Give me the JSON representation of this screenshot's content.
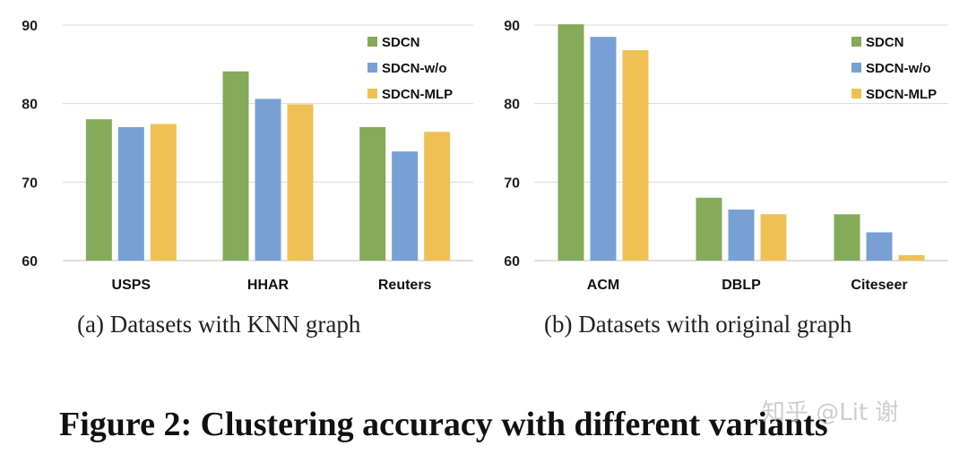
{
  "colors": {
    "SDCN": "#84aa5a",
    "SDCN-w/o": "#78a0d4",
    "SDCN-MLP": "#efc155",
    "grid": "#d9d9d9"
  },
  "chart_data": [
    {
      "type": "bar",
      "caption": "(a)  Datasets with KNN graph",
      "categories": [
        "USPS",
        "HHAR",
        "Reuters"
      ],
      "series": [
        {
          "name": "SDCN",
          "values": [
            78.0,
            84.1,
            77.0
          ]
        },
        {
          "name": "SDCN-w/o",
          "values": [
            77.0,
            80.6,
            73.9
          ]
        },
        {
          "name": "SDCN-MLP",
          "values": [
            77.4,
            79.9,
            76.4
          ]
        }
      ],
      "ylim": [
        60,
        90
      ],
      "yticks": [
        "60",
        "70",
        "80",
        "90"
      ],
      "grid": true,
      "legend_position": "top-right"
    },
    {
      "type": "bar",
      "caption": "(b)  Datasets with original graph",
      "categories": [
        "ACM",
        "DBLP",
        "Citeseer"
      ],
      "series": [
        {
          "name": "SDCN",
          "values": [
            90.1,
            68.0,
            65.9
          ]
        },
        {
          "name": "SDCN-w/o",
          "values": [
            88.5,
            66.5,
            63.6
          ]
        },
        {
          "name": "SDCN-MLP",
          "values": [
            86.8,
            65.9,
            60.7
          ]
        }
      ],
      "ylim": [
        60,
        90
      ],
      "yticks": [
        "60",
        "70",
        "80",
        "90"
      ],
      "grid": true,
      "legend_position": "top-right"
    }
  ],
  "figure_caption": "Figure 2: Clustering accuracy with different variants",
  "watermark": "知乎 @Lit 谢"
}
